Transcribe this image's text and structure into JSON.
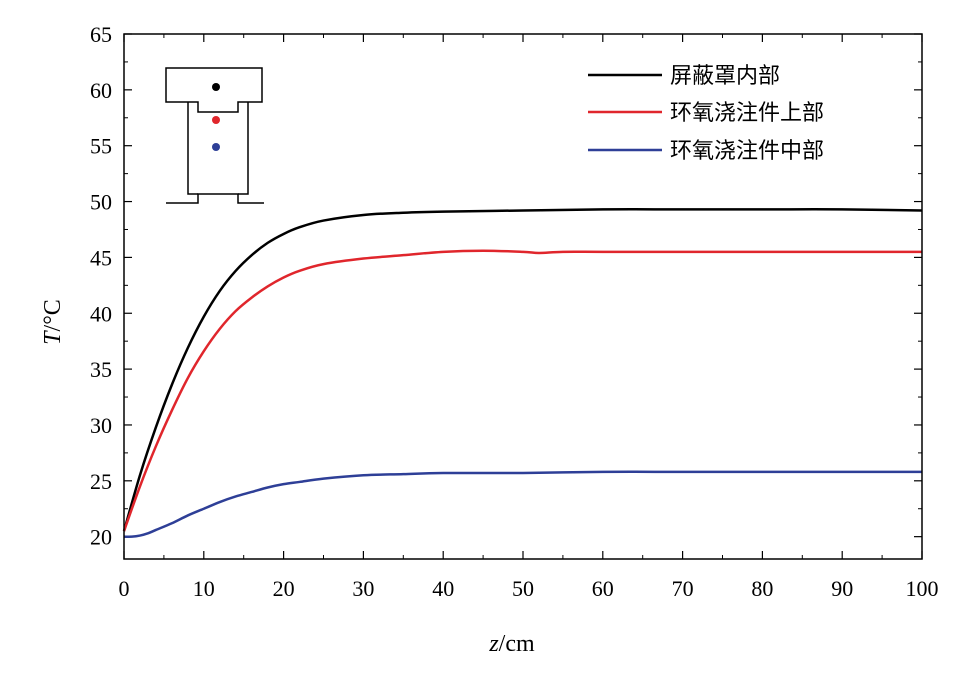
{
  "chart_data": {
    "type": "line",
    "xlabel_italic": "z",
    "xlabel_unit": "/cm",
    "ylabel_italic": "T",
    "ylabel_unit": "/°C",
    "xlim": [
      0,
      100
    ],
    "ylim": [
      18,
      65
    ],
    "xticks": [
      0,
      10,
      20,
      30,
      40,
      50,
      60,
      70,
      80,
      90,
      100
    ],
    "yticks": [
      20,
      25,
      30,
      35,
      40,
      45,
      50,
      55,
      60,
      65
    ],
    "grid": false,
    "legend_position": "top-right",
    "inset": "cross-section schematic (top-left) with three colored probe points",
    "series": [
      {
        "name": "屏蔽罩内部",
        "color": "#000000",
        "x": [
          0,
          2,
          4,
          6,
          8,
          10,
          12,
          14,
          16,
          18,
          20,
          22,
          25,
          30,
          35,
          40,
          50,
          60,
          70,
          80,
          90,
          100
        ],
        "y": [
          20.5,
          25.5,
          29.8,
          33.6,
          36.9,
          39.7,
          42.0,
          43.8,
          45.2,
          46.3,
          47.1,
          47.7,
          48.3,
          48.8,
          49.0,
          49.1,
          49.2,
          49.3,
          49.3,
          49.3,
          49.3,
          49.2
        ]
      },
      {
        "name": "环氧浇注件上部",
        "color": "#e0262c",
        "x": [
          0,
          2,
          4,
          6,
          8,
          10,
          12,
          14,
          16,
          18,
          20,
          22,
          25,
          30,
          35,
          40,
          45,
          50,
          52,
          55,
          60,
          70,
          80,
          90,
          100
        ],
        "y": [
          20.5,
          24.5,
          28.1,
          31.3,
          34.2,
          36.6,
          38.6,
          40.2,
          41.4,
          42.4,
          43.2,
          43.8,
          44.4,
          44.9,
          45.2,
          45.5,
          45.6,
          45.5,
          45.4,
          45.5,
          45.5,
          45.5,
          45.5,
          45.5,
          45.5
        ]
      },
      {
        "name": "环氧浇注件中部",
        "color": "#2e3f97",
        "x": [
          0,
          1,
          2,
          3,
          4,
          6,
          8,
          10,
          12,
          14,
          16,
          18,
          20,
          22,
          25,
          30,
          35,
          40,
          50,
          60,
          70,
          80,
          90,
          100
        ],
        "y": [
          20.0,
          20.0,
          20.1,
          20.3,
          20.6,
          21.2,
          21.9,
          22.5,
          23.1,
          23.6,
          24.0,
          24.4,
          24.7,
          24.9,
          25.2,
          25.5,
          25.6,
          25.7,
          25.7,
          25.8,
          25.8,
          25.8,
          25.8,
          25.8
        ]
      }
    ]
  }
}
